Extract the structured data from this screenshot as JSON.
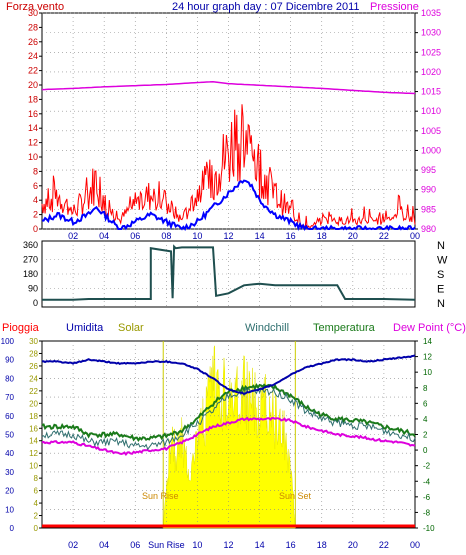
{
  "header": {
    "left_label": "Forza vento",
    "title": "24 hour graph day : 07 Dicembre 2011",
    "right_label": "Pressione"
  },
  "colors": {
    "wind": "#ff0000",
    "gust_avg": "#0000ff",
    "pressure": "#dd00dd",
    "direction": "#1f4f4f",
    "solar": "#ffff00",
    "humidity": "#0000aa",
    "windchill": "#2f6f6f",
    "temperature": "#1a7a1a",
    "dewpoint": "#dd00dd",
    "rain": "#ff0000",
    "left_axis_red": "#cc0000",
    "left_axis_blue": "#0000aa",
    "right_axis_green": "#006600",
    "grid": "#888888"
  },
  "panel1_axes": {
    "left_ticks": [
      "0",
      "2",
      "4",
      "6",
      "8",
      "10",
      "12",
      "14",
      "16",
      "18",
      "20",
      "22",
      "24",
      "26",
      "28",
      "30"
    ],
    "right_ticks": [
      "980",
      "985",
      "990",
      "995",
      "1000",
      "1005",
      "1010",
      "1015",
      "1020",
      "1025",
      "1030",
      "1035"
    ]
  },
  "panel2_axes": {
    "left_ticks": [
      "0",
      "90",
      "180",
      "270",
      "360"
    ],
    "right_letters": [
      "N",
      "W",
      "S",
      "E",
      "N"
    ]
  },
  "panel3_axes": {
    "legend": {
      "pioggia": "Pioggia",
      "umidita": "Umidita",
      "solar": "Solar",
      "windchill": "Windchill",
      "temperatura": "Temperatura",
      "dewpoint": "Dew Point (°C)"
    },
    "humidity_ticks": [
      "0",
      "10",
      "20",
      "30",
      "40",
      "50",
      "60",
      "70",
      "80",
      "90",
      "100"
    ],
    "solar_ticks": [
      "0",
      "2",
      "4",
      "6",
      "8",
      "10",
      "12",
      "14",
      "16",
      "18",
      "20",
      "22",
      "24",
      "26",
      "28",
      "30"
    ],
    "temp_ticks": [
      "-10",
      "-8",
      "-6",
      "-4",
      "-2",
      "0",
      "2",
      "4",
      "6",
      "8",
      "10",
      "12",
      "14"
    ],
    "sun_rise": "Sun Rise",
    "sun_set": "Sun Set"
  },
  "x_axis": {
    "labels_top": [
      "02",
      "04",
      "06",
      "08",
      "10",
      "12",
      "14",
      "16",
      "18",
      "20",
      "22",
      "00"
    ],
    "labels_bottom": [
      "02",
      "04",
      "06",
      "Sun Rise",
      "10",
      "12",
      "14",
      "16",
      "18",
      "20",
      "22",
      "00"
    ]
  },
  "chart_data": [
    {
      "type": "line",
      "x_unit": "hour",
      "series": [
        {
          "name": "Forza vento",
          "x": [
            0,
            1,
            2,
            3,
            3.5,
            4,
            5,
            6,
            7,
            8,
            9,
            10,
            11,
            12,
            12.5,
            13,
            13.5,
            14,
            15,
            16,
            17,
            18,
            19,
            20,
            21,
            22,
            23,
            24
          ],
          "values": [
            3,
            4,
            2,
            4,
            6,
            3,
            1,
            3,
            4,
            3,
            1,
            4,
            6,
            9,
            11,
            10,
            9,
            7,
            4,
            2,
            0,
            1,
            1,
            1,
            1,
            1,
            2,
            1
          ]
        },
        {
          "name": "",
          "x": [
            0,
            1,
            2,
            3,
            3.5,
            4,
            5,
            6,
            7,
            8,
            9,
            10,
            11,
            12,
            12.5,
            13,
            13.5,
            14,
            15,
            16,
            17,
            18,
            19,
            20,
            21,
            22,
            23,
            24
          ],
          "values": [
            1,
            2,
            1,
            2,
            3,
            2,
            0,
            1,
            2,
            1,
            0,
            1,
            3,
            5,
            6,
            7,
            6,
            4,
            2,
            1,
            0,
            0,
            0,
            0,
            0,
            0,
            0,
            0
          ]
        },
        {
          "name": "Pressione",
          "x": [
            0,
            2,
            4,
            6,
            8,
            10,
            11,
            12,
            14,
            16,
            18,
            20,
            22,
            24
          ],
          "values": [
            1015.5,
            1015.8,
            1016.2,
            1016.5,
            1016.8,
            1017.3,
            1017.5,
            1017,
            1016.6,
            1016.2,
            1015.8,
            1015.3,
            1014.8,
            1014.5
          ]
        }
      ],
      "xlim": [
        0,
        24
      ],
      "ylim": [
        0,
        30
      ],
      "y2lim": [
        980,
        1035
      ]
    },
    {
      "type": "line",
      "x_unit": "hour",
      "series": [
        {
          "name": "",
          "x": [
            0,
            2,
            3,
            6,
            7,
            7,
            8.3,
            8.4,
            8.5,
            8.6,
            9,
            10,
            11,
            11.2,
            12,
            13,
            14,
            15,
            16,
            18,
            19,
            19.5,
            20,
            22,
            24
          ],
          "values": [
            20,
            20,
            25,
            25,
            25,
            340,
            320,
            30,
            350,
            340,
            345,
            345,
            345,
            45,
            60,
            110,
            120,
            110,
            110,
            110,
            110,
            25,
            25,
            25,
            20
          ]
        }
      ],
      "xlim": [
        0,
        24
      ],
      "ylim": [
        0,
        360
      ]
    },
    {
      "type": "line",
      "x_unit": "hour",
      "series": [
        {
          "name": "Umidita",
          "x": [
            0,
            1,
            2,
            3,
            4,
            5,
            6,
            7,
            8,
            9,
            10,
            11,
            12,
            13,
            14,
            15,
            16,
            17,
            18,
            19,
            20,
            21,
            22,
            23,
            24
          ],
          "values": [
            89,
            89,
            88,
            90,
            89,
            88,
            88,
            89,
            89,
            88,
            85,
            80,
            74,
            72,
            74,
            77,
            82,
            86,
            88,
            90,
            90,
            89,
            90,
            91,
            92
          ]
        },
        {
          "name": "Solar",
          "x": [
            7.8,
            8.3,
            8.6,
            9,
            9.5,
            10,
            10.5,
            11,
            11.5,
            12,
            12.5,
            13,
            13.5,
            14,
            14.5,
            15,
            15.5,
            16,
            16.3
          ],
          "values": [
            0,
            20,
            16,
            18,
            12,
            18,
            22,
            30,
            27,
            28,
            26,
            28,
            26,
            24,
            26,
            22,
            20,
            14,
            0
          ]
        },
        {
          "name": "Temperatura",
          "x": [
            0,
            1,
            2,
            3,
            4,
            5,
            6,
            7,
            8,
            9,
            10,
            11,
            12,
            13,
            14,
            15,
            16,
            17,
            18,
            19,
            20,
            21,
            22,
            23,
            24
          ],
          "values": [
            3,
            3,
            3,
            2,
            2,
            2,
            1.5,
            1.5,
            1.8,
            2.5,
            4,
            6,
            7.5,
            8,
            8.2,
            8,
            7,
            5.5,
            4.5,
            4,
            3.8,
            3.5,
            3,
            2.5,
            2
          ]
        },
        {
          "name": "Windchill",
          "x": [
            0,
            1,
            2,
            3,
            4,
            5,
            6,
            7,
            8,
            9,
            10,
            11,
            12,
            13,
            14,
            15,
            16,
            17,
            18,
            19,
            20,
            21,
            22,
            23,
            24
          ],
          "values": [
            2,
            2,
            2,
            1,
            1,
            1,
            0.5,
            0.5,
            1,
            2,
            3.5,
            5,
            7,
            7.5,
            7.5,
            7.5,
            6.5,
            5,
            4,
            3.5,
            3.2,
            3,
            2.5,
            2,
            1.5
          ]
        },
        {
          "name": "Dew Point (°C)",
          "x": [
            0,
            1,
            2,
            3,
            4,
            5,
            6,
            7,
            8,
            9,
            10,
            11,
            12,
            13,
            14,
            15,
            16,
            17,
            18,
            19,
            20,
            21,
            22,
            23,
            24
          ],
          "values": [
            1,
            1,
            1,
            0.5,
            0,
            -0.5,
            -0.3,
            0,
            0.2,
            1,
            2,
            3,
            3.5,
            4,
            4,
            4,
            3.8,
            3,
            2.5,
            2,
            1.8,
            1.5,
            1.2,
            1,
            0.5
          ]
        },
        {
          "name": "Pioggia",
          "x": [
            0,
            24
          ],
          "values": [
            0,
            0
          ]
        }
      ],
      "xlim": [
        0,
        24
      ],
      "humidity_lim": [
        0,
        100
      ],
      "solar_lim": [
        0,
        30
      ],
      "temp_lim": [
        -10,
        14
      ],
      "sun_rise_hour": 7.8,
      "sun_set_hour": 16.3
    }
  ]
}
